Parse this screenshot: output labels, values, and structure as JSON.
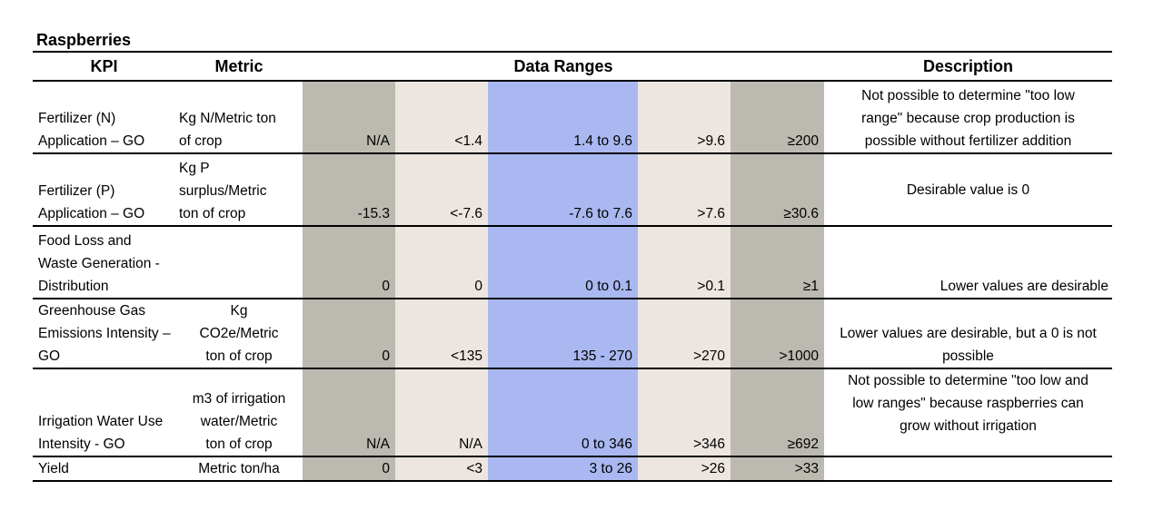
{
  "title": "Raspberries",
  "headers": {
    "kpi": "KPI",
    "metric": "Metric",
    "ranges": "Data Ranges",
    "description": "Description"
  },
  "rows": [
    {
      "kpi": [
        "Fertilizer (N)",
        "Application – GO"
      ],
      "metric": [
        "Kg N/Metric ton",
        "of crop"
      ],
      "ranges": [
        "N/A",
        "<1.4",
        "1.4 to 9.6",
        ">9.6",
        "≥200"
      ],
      "description": [
        "Not possible to determine \"too low",
        "range\" because crop production is",
        "possible without fertilizer addition"
      ]
    },
    {
      "kpi": [
        "Fertilizer (P)",
        "Application – GO"
      ],
      "metric": [
        "Kg P",
        "surplus/Metric",
        "ton of crop"
      ],
      "ranges": [
        "-15.3",
        "<-7.6",
        "-7.6 to 7.6",
        ">7.6",
        "≥30.6"
      ],
      "description": [
        "Desirable value is 0"
      ]
    },
    {
      "kpi": [
        "Food Loss and",
        "Waste Generation -",
        "Distribution"
      ],
      "metric": [],
      "ranges": [
        "0",
        "0",
        "0 to 0.1",
        ">0.1",
        "≥1"
      ],
      "description": [
        "Lower values are desirable"
      ]
    },
    {
      "kpi": [
        "Greenhouse Gas",
        "Emissions Intensity –",
        "GO"
      ],
      "metric": [
        "Kg",
        "CO2e/Metric",
        "ton of crop"
      ],
      "ranges": [
        "0",
        "<135",
        "135 - 270",
        ">270",
        ">1000"
      ],
      "description": [
        "Lower values are desirable, but a 0 is not",
        "possible"
      ]
    },
    {
      "kpi": [
        "Irrigation Water Use",
        "Intensity - GO"
      ],
      "metric": [
        "m3 of irrigation",
        "water/Metric",
        "ton of crop"
      ],
      "ranges": [
        "N/A",
        "N/A",
        "0 to 346",
        ">346",
        "≥692"
      ],
      "description": [
        "Not possible to determine \"too low and",
        "low ranges\" because raspberries can",
        "grow without irrigation"
      ]
    },
    {
      "kpi": [
        "Yield"
      ],
      "metric": [
        "Metric ton/ha"
      ],
      "ranges": [
        "0",
        "<3",
        "3 to 26",
        ">26",
        ">33"
      ],
      "description": []
    }
  ]
}
